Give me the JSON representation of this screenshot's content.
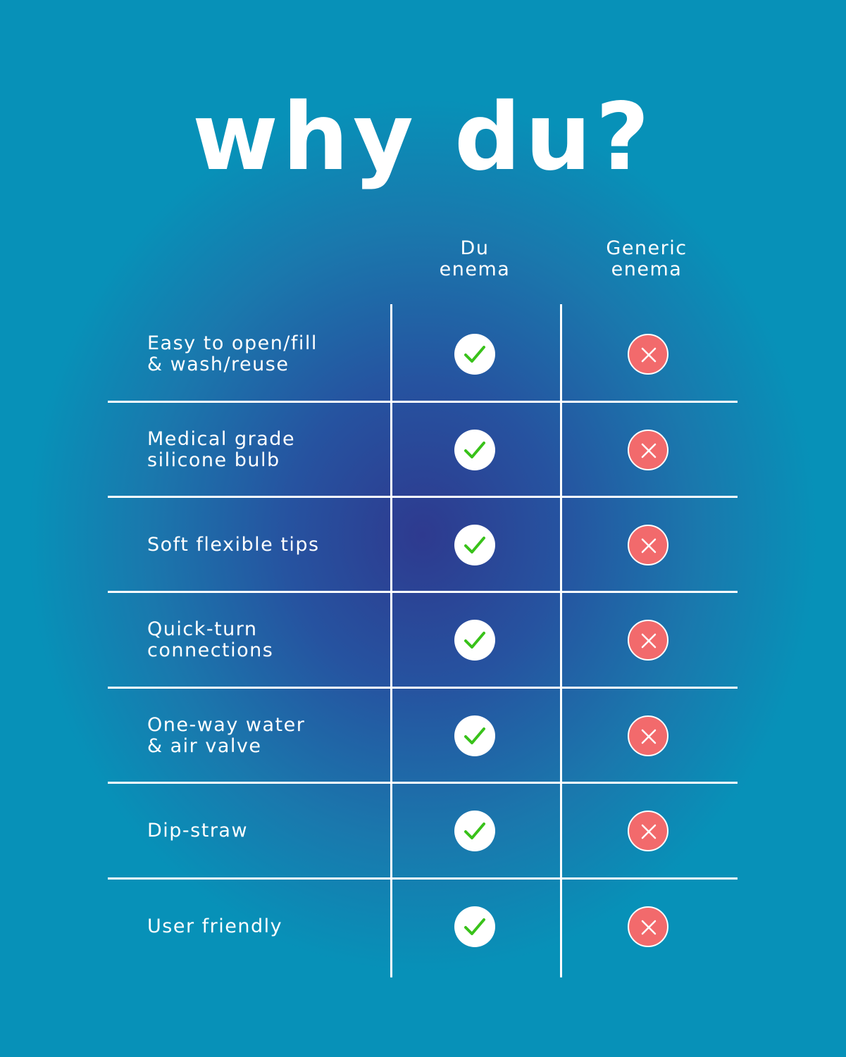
{
  "title": "why du?",
  "columns": [
    {
      "line1": "Du",
      "line2": "enema"
    },
    {
      "line1": "Generic",
      "line2": "enema"
    }
  ],
  "rows": [
    {
      "lines": [
        "Easy to open/fill",
        "& wash/reuse"
      ],
      "du": "check",
      "generic": "cross"
    },
    {
      "lines": [
        "Medical grade",
        "silicone bulb"
      ],
      "du": "check",
      "generic": "cross"
    },
    {
      "lines": [
        "Soft flexible tips"
      ],
      "du": "check",
      "generic": "cross"
    },
    {
      "lines": [
        "Quick-turn",
        "connections"
      ],
      "du": "check",
      "generic": "cross"
    },
    {
      "lines": [
        "One-way water",
        "& air valve"
      ],
      "du": "check",
      "generic": "cross"
    },
    {
      "lines": [
        "Dip-straw"
      ],
      "du": "check",
      "generic": "cross"
    },
    {
      "lines": [
        "User friendly"
      ],
      "du": "check",
      "generic": "cross"
    }
  ],
  "colors": {
    "background": "#0791b8",
    "center_glow": "#2e3a8f",
    "check": "#39c21a",
    "cross_fill": "#f26a6c",
    "text": "#ffffff"
  }
}
